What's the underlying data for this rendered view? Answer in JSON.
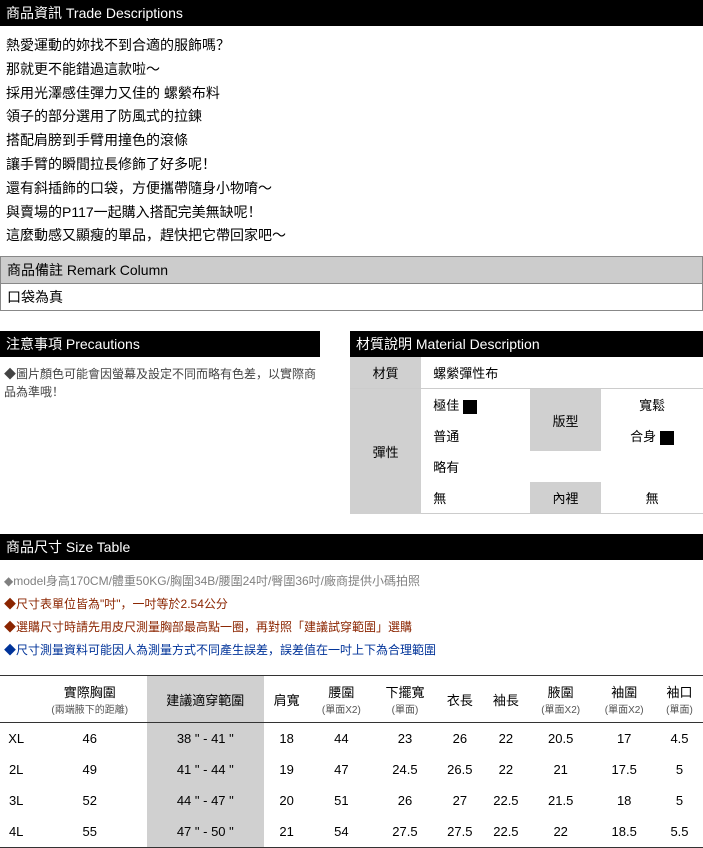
{
  "trade": {
    "header": "商品資訊 Trade Descriptions",
    "lines": [
      "熱愛運動的妳找不到合適的服飾嗎？",
      "那就更不能錯過這款啦～",
      "採用光澤感佳彈力又佳的 螺縈布料",
      "領子的部分選用了防風式的拉鍊",
      "搭配肩膀到手臂用撞色的滾條",
      "讓手臂的瞬間拉長修飾了好多呢！",
      "還有斜插飾的口袋，方便攜帶隨身小物唷～",
      "與賣場的P117一起購入搭配完美無缺呢！",
      "這麼動感又顯瘦的單品，趕快把它帶回家吧～"
    ]
  },
  "remark": {
    "header": "商品備註 Remark Column",
    "body": "口袋為真"
  },
  "precautions": {
    "header": "注意事項 Precautions",
    "body": "◆圖片顏色可能會因螢幕及設定不同而略有色差，以實際商品為準哦！"
  },
  "material": {
    "header": "材質說明 Material Description",
    "row_material_label": "材質",
    "row_material_value": "螺縈彈性布",
    "elastic_label": "彈性",
    "elastic_opts": {
      "great": "極佳",
      "normal": "普通",
      "slight": "略有",
      "none": "無"
    },
    "fit_label": "版型",
    "fit_opts": {
      "loose": "寬鬆",
      "fit": "合身"
    },
    "lining_label": "內裡",
    "lining_value": "無"
  },
  "size": {
    "header": "商品尺寸 Size Table",
    "notes": {
      "n1": "◆model身高170CM/體重50KG/胸圍34B/腰圍24吋/臀圍36吋/廠商提供小碼拍照",
      "n2": "◆尺寸表單位皆為\"吋\"，一吋等於2.54公分",
      "n3": "◆選購尺寸時請先用皮尺測量胸部最高點一圈，再對照「建議試穿範圍」選購",
      "n4": "◆尺寸測量資料可能因人為測量方式不同產生誤差，誤差值在一吋上下為合理範圍"
    },
    "columns": {
      "c0": "",
      "c1": "實際胸圍",
      "c1sub": "(兩端腋下的距離)",
      "c2": "建議適穿範圍",
      "c3": "肩寬",
      "c4": "腰圍",
      "c4sub": "(單面X2)",
      "c5": "下擺寬",
      "c5sub": "(單面)",
      "c6": "衣長",
      "c7": "袖長",
      "c8": "腋圍",
      "c8sub": "(單面X2)",
      "c9": "袖圍",
      "c9sub": "(單面X2)",
      "c10": "袖口",
      "c10sub": "(單面)"
    },
    "rows": [
      {
        "s": "XL",
        "c1": "46",
        "c2": "38 \" - 41 \"",
        "c3": "18",
        "c4": "44",
        "c5": "23",
        "c6": "26",
        "c7": "22",
        "c8": "20.5",
        "c9": "17",
        "c10": "4.5"
      },
      {
        "s": "2L",
        "c1": "49",
        "c2": "41 \" - 44 \"",
        "c3": "19",
        "c4": "47",
        "c5": "24.5",
        "c6": "26.5",
        "c7": "22",
        "c8": "21",
        "c9": "17.5",
        "c10": "5"
      },
      {
        "s": "3L",
        "c1": "52",
        "c2": "44 \" - 47 \"",
        "c3": "20",
        "c4": "51",
        "c5": "26",
        "c6": "27",
        "c7": "22.5",
        "c8": "21.5",
        "c9": "18",
        "c10": "5"
      },
      {
        "s": "4L",
        "c1": "55",
        "c2": "47 \" - 50 \"",
        "c3": "21",
        "c4": "54",
        "c5": "27.5",
        "c6": "27.5",
        "c7": "22.5",
        "c8": "22",
        "c9": "18.5",
        "c10": "5.5"
      }
    ]
  }
}
